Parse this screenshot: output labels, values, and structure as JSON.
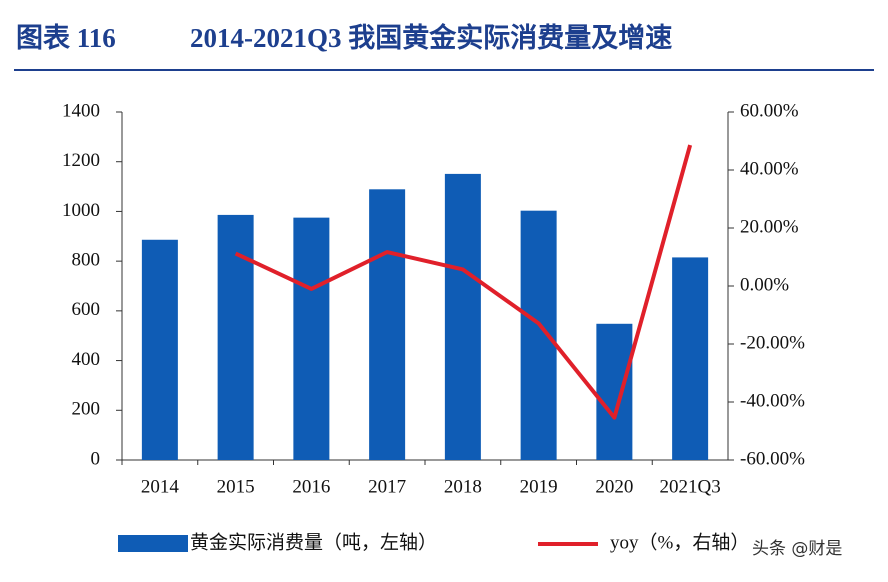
{
  "chart_data": {
    "type": "bar",
    "figure_label": "图表 116",
    "title": "2014-2021Q3 我国黄金实际消费量及增速",
    "categories": [
      "2014",
      "2015",
      "2016",
      "2017",
      "2018",
      "2019",
      "2020",
      "2021Q3"
    ],
    "series": [
      {
        "name": "黄金实际消费量（吨，左轴）",
        "type": "bar",
        "color": "#0f5cb5",
        "values": [
          886,
          986,
          975,
          1089,
          1151,
          1003,
          548,
          815
        ]
      },
      {
        "name": "yoy（%，右轴）",
        "type": "line",
        "axis": "y2",
        "color": "#e0202a",
        "values": [
          null,
          11.2,
          -1.0,
          11.7,
          5.7,
          -12.9,
          -45.4,
          48.6
        ]
      }
    ],
    "ylim": [
      0,
      1400
    ],
    "yticks": [
      0,
      200,
      400,
      600,
      800,
      1000,
      1200,
      1400
    ],
    "y2lim": [
      -60,
      60
    ],
    "y2ticks": [
      {
        "value": -60,
        "label": "-60.00%"
      },
      {
        "value": -40,
        "label": "-40.00%"
      },
      {
        "value": -20,
        "label": "-20.00%"
      },
      {
        "value": 0,
        "label": "0.00%"
      },
      {
        "value": 20,
        "label": "20.00%"
      },
      {
        "value": 40,
        "label": "40.00%"
      },
      {
        "value": 60,
        "label": "60.00%"
      }
    ],
    "grid": false,
    "legend": "bottom",
    "watermark": "头条 @财是"
  }
}
